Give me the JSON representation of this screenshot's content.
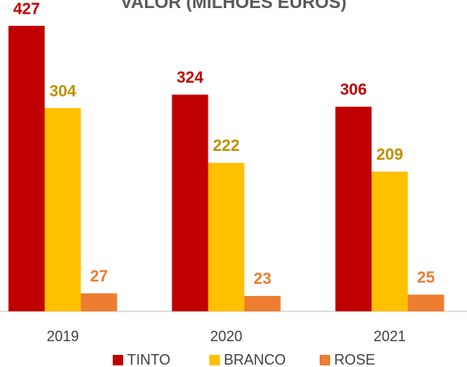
{
  "chart_data": {
    "type": "bar",
    "title": "VALOR (MILHÕES EUROS)",
    "categories": [
      "2019",
      "2020",
      "2021"
    ],
    "series": [
      {
        "name": "TINTO",
        "color": "#c00000",
        "label_color": "#c00000",
        "values": [
          427,
          324,
          306
        ]
      },
      {
        "name": "BRANCO",
        "color": "#ffc000",
        "label_color": "#bf9000",
        "values": [
          304,
          222,
          209
        ]
      },
      {
        "name": "ROSE",
        "color": "#ed7d31",
        "label_color": "#ed7d31",
        "values": [
          27,
          23,
          25
        ]
      }
    ],
    "legend": "bottom"
  }
}
